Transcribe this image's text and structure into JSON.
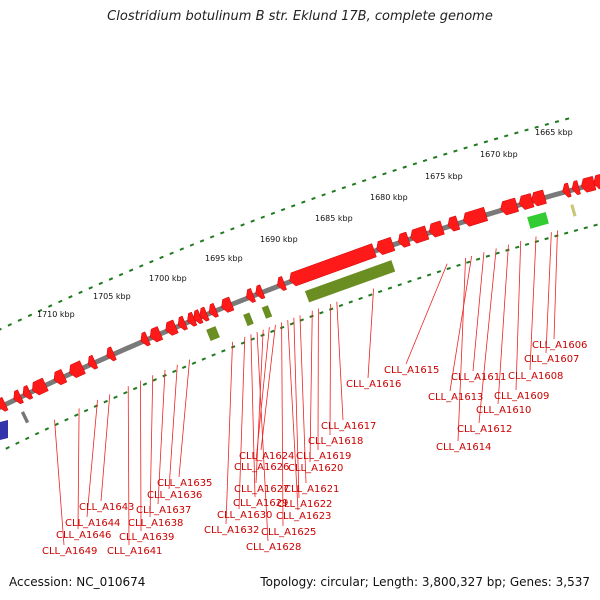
{
  "title": "Clostridium botulinum B str. Eklund 17B, complete genome",
  "footer": {
    "accession": "Accession: NC_010674",
    "summary": "Topology: circular; Length: 3,800,327 bp; Genes: 3,537"
  },
  "scale_labels": [
    "1710 kbp",
    "1705 kbp",
    "1700 kbp",
    "1695 kbp",
    "1690 kbp",
    "1685 kbp",
    "1680 kbp",
    "1675 kbp",
    "1670 kbp",
    "1665 kbp"
  ],
  "gene_labels": [
    "CLL_A1606",
    "CLL_A1607",
    "CLL_A1608",
    "CLL_A1609",
    "CLL_A1610",
    "CLL_A1611",
    "CLL_A1612",
    "CLL_A1613",
    "CLL_A1614",
    "CLL_A1615",
    "CLL_A1616",
    "CLL_A1617",
    "CLL_A1618",
    "CLL_A1619",
    "CLL_A1620",
    "CLL_A1621",
    "CLL_A1622",
    "CLL_A1623",
    "CLL_A1624",
    "CLL_A1625",
    "CLL_A1626",
    "CLL_A1627",
    "CLL_A1628",
    "CLL_A1629",
    "CLL_A1630",
    "CLL_A1632",
    "CLL_A1635",
    "CLL_A1636",
    "CLL_A1637",
    "CLL_A1638",
    "CLL_A1639",
    "CLL_A1641",
    "CLL_A1643",
    "CLL_A1644",
    "CLL_A1646",
    "CLL_A1649"
  ],
  "colors": {
    "backbone": "#888888",
    "gene_forward": "#ff1a1a",
    "gene_reverse_olive": "#6b8e23",
    "gene_green": "#33cc33",
    "gene_tan": "#c8c87a",
    "tick": "#1f7a1f",
    "label": "#cc0000"
  }
}
